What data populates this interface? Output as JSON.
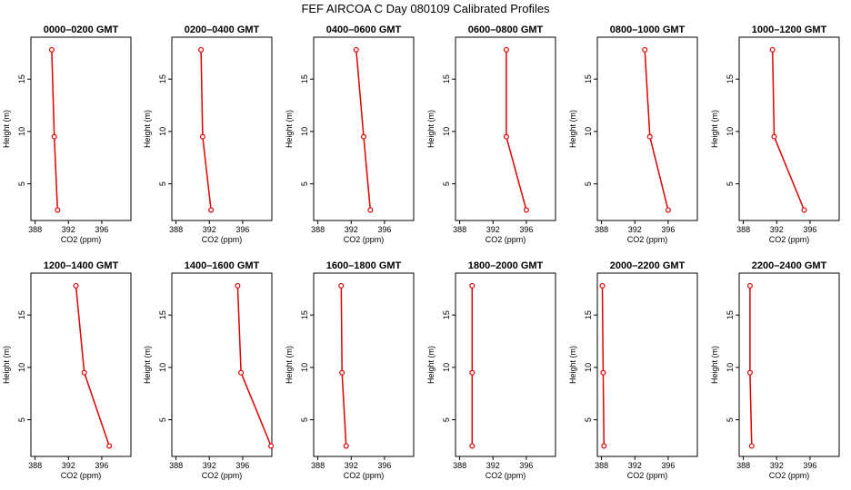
{
  "figure_title": "FEF AIRCOA C  Day 080109  Calibrated Profiles",
  "colors": {
    "series": "#e00000",
    "axes": "#000000",
    "background": "#ffffff"
  },
  "chart_data": [
    {
      "type": "line",
      "title": "0000–0200 GMT",
      "xlabel": "CO2 (ppm)",
      "ylabel": "Height (m)",
      "xlim": [
        387.5,
        399.5
      ],
      "ylim": [
        1.5,
        19
      ],
      "xticks": [
        388,
        392,
        396
      ],
      "yticks": [
        5,
        10,
        15
      ],
      "points": [
        {
          "co2": 390.0,
          "height": 17.8
        },
        {
          "co2": 390.3,
          "height": 9.5
        },
        {
          "co2": 390.7,
          "height": 2.5
        }
      ]
    },
    {
      "type": "line",
      "title": "0200–0400 GMT",
      "xlabel": "CO2 (ppm)",
      "ylabel": "Height (m)",
      "xlim": [
        387.5,
        399.5
      ],
      "ylim": [
        1.5,
        19
      ],
      "xticks": [
        388,
        392,
        396
      ],
      "yticks": [
        5,
        10,
        15
      ],
      "points": [
        {
          "co2": 391.0,
          "height": 17.8
        },
        {
          "co2": 391.2,
          "height": 9.5
        },
        {
          "co2": 392.2,
          "height": 2.5
        }
      ]
    },
    {
      "type": "line",
      "title": "0400–0600 GMT",
      "xlabel": "CO2 (ppm)",
      "ylabel": "Height (m)",
      "xlim": [
        387.5,
        399.5
      ],
      "ylim": [
        1.5,
        19
      ],
      "xticks": [
        388,
        392,
        396
      ],
      "yticks": [
        5,
        10,
        15
      ],
      "points": [
        {
          "co2": 392.6,
          "height": 17.8
        },
        {
          "co2": 393.5,
          "height": 9.5
        },
        {
          "co2": 394.3,
          "height": 2.5
        }
      ]
    },
    {
      "type": "line",
      "title": "0600–0800 GMT",
      "xlabel": "CO2 (ppm)",
      "ylabel": "Height (m)",
      "xlim": [
        387.5,
        399.5
      ],
      "ylim": [
        1.5,
        19
      ],
      "xticks": [
        388,
        392,
        396
      ],
      "yticks": [
        5,
        10,
        15
      ],
      "points": [
        {
          "co2": 393.6,
          "height": 17.8
        },
        {
          "co2": 393.6,
          "height": 9.5
        },
        {
          "co2": 396.0,
          "height": 2.5
        }
      ]
    },
    {
      "type": "line",
      "title": "0800–1000 GMT",
      "xlabel": "CO2 (ppm)",
      "ylabel": "Height (m)",
      "xlim": [
        387.5,
        399.5
      ],
      "ylim": [
        1.5,
        19
      ],
      "xticks": [
        388,
        392,
        396
      ],
      "yticks": [
        5,
        10,
        15
      ],
      "points": [
        {
          "co2": 393.2,
          "height": 17.8
        },
        {
          "co2": 393.8,
          "height": 9.5
        },
        {
          "co2": 396.0,
          "height": 2.5
        }
      ]
    },
    {
      "type": "line",
      "title": "1000–1200 GMT",
      "xlabel": "CO2 (ppm)",
      "ylabel": "Height (m)",
      "xlim": [
        387.5,
        399.5
      ],
      "ylim": [
        1.5,
        19
      ],
      "xticks": [
        388,
        392,
        396
      ],
      "yticks": [
        5,
        10,
        15
      ],
      "points": [
        {
          "co2": 391.5,
          "height": 17.8
        },
        {
          "co2": 391.7,
          "height": 9.5
        },
        {
          "co2": 395.3,
          "height": 2.5
        }
      ]
    },
    {
      "type": "line",
      "title": "1200–1400 GMT",
      "xlabel": "CO2 (ppm)",
      "ylabel": "Height (m)",
      "xlim": [
        387.5,
        399.5
      ],
      "ylim": [
        1.5,
        19
      ],
      "xticks": [
        388,
        392,
        396
      ],
      "yticks": [
        5,
        10,
        15
      ],
      "points": [
        {
          "co2": 392.9,
          "height": 17.8
        },
        {
          "co2": 393.9,
          "height": 9.5
        },
        {
          "co2": 396.9,
          "height": 2.5
        }
      ]
    },
    {
      "type": "line",
      "title": "1400–1600 GMT",
      "xlabel": "CO2 (ppm)",
      "ylabel": "Height (m)",
      "xlim": [
        387.5,
        399.5
      ],
      "ylim": [
        1.5,
        19
      ],
      "xticks": [
        388,
        392,
        396
      ],
      "yticks": [
        5,
        10,
        15
      ],
      "points": [
        {
          "co2": 395.4,
          "height": 17.8
        },
        {
          "co2": 395.8,
          "height": 9.5
        },
        {
          "co2": 399.4,
          "height": 2.5
        }
      ]
    },
    {
      "type": "line",
      "title": "1600–1800 GMT",
      "xlabel": "CO2 (ppm)",
      "ylabel": "Height (m)",
      "xlim": [
        387.5,
        399.5
      ],
      "ylim": [
        1.5,
        19
      ],
      "xticks": [
        388,
        392,
        396
      ],
      "yticks": [
        5,
        10,
        15
      ],
      "points": [
        {
          "co2": 390.8,
          "height": 17.8
        },
        {
          "co2": 390.9,
          "height": 9.5
        },
        {
          "co2": 391.4,
          "height": 2.5
        }
      ]
    },
    {
      "type": "line",
      "title": "1800–2000 GMT",
      "xlabel": "CO2 (ppm)",
      "ylabel": "Height (m)",
      "xlim": [
        387.5,
        399.5
      ],
      "ylim": [
        1.5,
        19
      ],
      "xticks": [
        388,
        392,
        396
      ],
      "yticks": [
        5,
        10,
        15
      ],
      "points": [
        {
          "co2": 389.5,
          "height": 17.8
        },
        {
          "co2": 389.5,
          "height": 9.5
        },
        {
          "co2": 389.5,
          "height": 2.5
        }
      ]
    },
    {
      "type": "line",
      "title": "2000–2200 GMT",
      "xlabel": "CO2 (ppm)",
      "ylabel": "Height (m)",
      "xlim": [
        387.5,
        399.5
      ],
      "ylim": [
        1.5,
        19
      ],
      "xticks": [
        388,
        392,
        396
      ],
      "yticks": [
        5,
        10,
        15
      ],
      "points": [
        {
          "co2": 388.1,
          "height": 17.8
        },
        {
          "co2": 388.2,
          "height": 9.5
        },
        {
          "co2": 388.3,
          "height": 2.5
        }
      ]
    },
    {
      "type": "line",
      "title": "2200–2400 GMT",
      "xlabel": "CO2 (ppm)",
      "ylabel": "Height (m)",
      "xlim": [
        387.5,
        399.5
      ],
      "ylim": [
        1.5,
        19
      ],
      "xticks": [
        388,
        392,
        396
      ],
      "yticks": [
        5,
        10,
        15
      ],
      "points": [
        {
          "co2": 388.8,
          "height": 17.8
        },
        {
          "co2": 388.8,
          "height": 9.5
        },
        {
          "co2": 389.0,
          "height": 2.5
        }
      ]
    }
  ]
}
